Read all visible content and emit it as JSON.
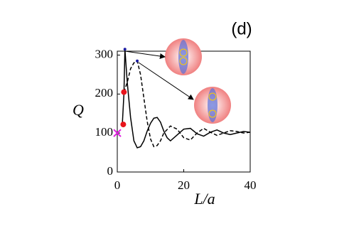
{
  "chart_data": {
    "type": "line",
    "panel_label": "(d)",
    "xlabel": "L/a",
    "ylabel": "Q",
    "xlim": [
      0,
      40
    ],
    "ylim": [
      0,
      310
    ],
    "xticks": [
      0,
      20,
      40
    ],
    "yticks": [
      0,
      100,
      200,
      300
    ],
    "series": [
      {
        "style": "solid",
        "color": "#000000",
        "x": [
          1.5,
          2,
          2.3,
          3,
          4,
          5,
          6,
          7,
          8,
          9,
          10,
          11,
          12,
          13,
          14,
          15,
          16,
          18,
          20,
          22,
          24,
          26,
          28,
          30,
          32,
          34,
          36,
          38,
          40
        ],
        "values": [
          120,
          200,
          315,
          230,
          140,
          80,
          62,
          65,
          80,
          105,
          125,
          138,
          140,
          128,
          105,
          88,
          80,
          95,
          110,
          112,
          98,
          92,
          102,
          108,
          100,
          96,
          100,
          104,
          102
        ]
      },
      {
        "style": "dashed",
        "color": "#000000",
        "x": [
          2,
          3,
          4,
          5,
          6,
          7,
          8,
          9,
          10,
          11,
          12,
          13,
          14,
          16,
          18,
          20,
          22,
          24,
          26,
          28,
          30,
          32,
          34,
          36,
          38,
          40
        ],
        "values": [
          205,
          230,
          265,
          280,
          285,
          250,
          190,
          130,
          85,
          65,
          68,
          80,
          100,
          118,
          110,
          88,
          82,
          100,
          112,
          102,
          94,
          100,
          106,
          104,
          100,
          102
        ]
      }
    ],
    "points": [
      {
        "marker": "dot",
        "color": "#e8141c",
        "x": [
          1.8,
          2
        ],
        "values": [
          122,
          205
        ]
      },
      {
        "marker": "cross",
        "color": "#e020e0",
        "x": [
          0
        ],
        "values": [
          100
        ]
      },
      {
        "marker": "dot",
        "color": "#1a1aa0",
        "x": [
          2.3,
          6
        ],
        "values": [
          315,
          285
        ]
      }
    ]
  }
}
